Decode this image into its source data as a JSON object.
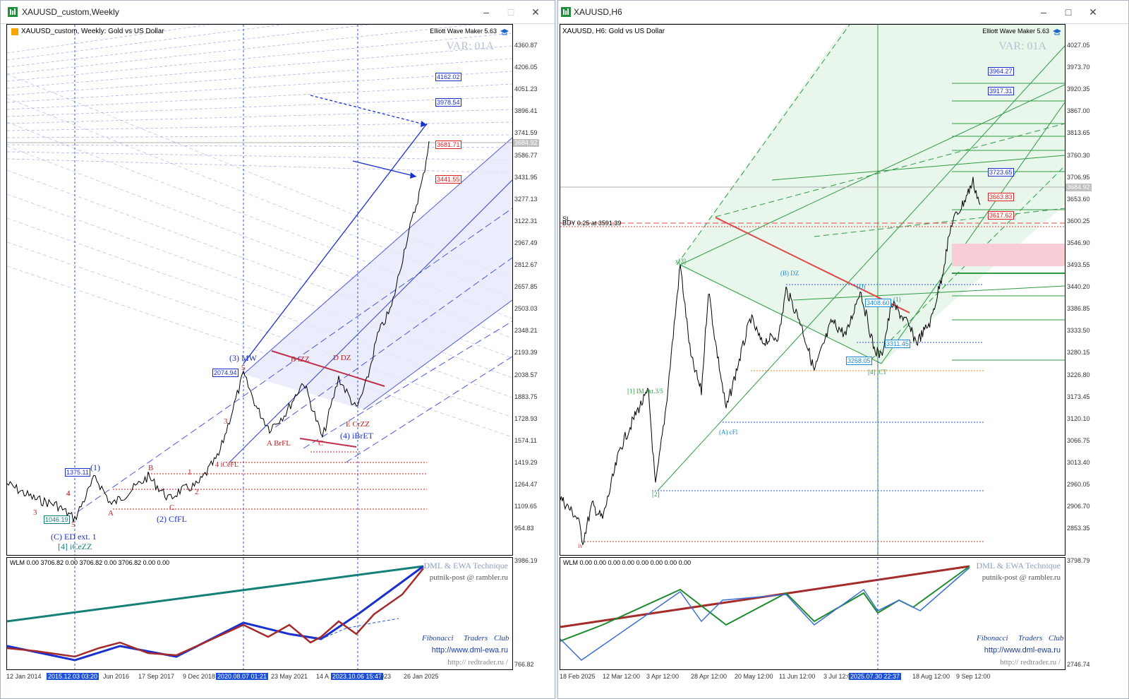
{
  "left": {
    "title": "XAUUSD_custom,Weekly",
    "header": "XAUUSD_custom, Weekly:  Gold vs US Dollar",
    "ea_label": "Elliott Wave Maker 5.63",
    "var_label": "VAR: 01A",
    "price_axis": [
      "4360.87",
      "4206.05",
      "4051.23",
      "3896.41",
      "3741.59",
      "3586.77",
      "3431.95",
      "3277.13",
      "3122.31",
      "2967.49",
      "2812.67",
      "2657.85",
      "2503.03",
      "2348.21",
      "2193.39",
      "2038.57",
      "1883.75",
      "1728.93",
      "1574.11",
      "1419.29",
      "1264.47",
      "1109.65",
      "954.83"
    ],
    "current_price": "3684.92",
    "price_tags": [
      {
        "text": "4162.02",
        "color": "#1a2fd0"
      },
      {
        "text": "3978.54",
        "color": "#1a2fd0"
      },
      {
        "text": "3681.71",
        "color": "#e02020"
      },
      {
        "text": "3441.55",
        "color": "#e02020"
      }
    ],
    "box_labels": [
      "2074.94",
      "1375.11",
      "1046.19"
    ],
    "wave_labels": [
      "(3) MW",
      "(1)",
      "(2) CfFL",
      "(C) ED ext. 1",
      "[4] iCeZZ",
      "A BrFL",
      "(4) iBrET",
      "E CrZZ",
      "D DZ",
      "B iZZ",
      "4 iCeFL",
      "A",
      "B",
      "C",
      "1",
      "2",
      "3",
      "4",
      "5",
      "3",
      "4",
      "5",
      "C"
    ],
    "time_axis": [
      "12 Jan 2014",
      "2015.12.03 03:20",
      "Jun 2016",
      "17 Sep 2017",
      "9 Dec 2018",
      "2020.08.07 01:21",
      "23 May 2021",
      "14 A",
      "2023.10.06 15:47",
      "023",
      "26 Jan 2025"
    ],
    "time_highlight": [
      "2015.12.03 03:20",
      "2020.08.07 01:21",
      "2023.10.06 15:47"
    ],
    "sub": {
      "wlm": "WLM 0.00 3706.82 0.00 3706.82 0.00 3706.82 0.00 0.00",
      "axis_top": "3986.19",
      "axis_bottom": "766.82",
      "credit1": "DML & EWA Technique",
      "credit2": "putnik-post @ rambler.ru",
      "fib_words": [
        "Fibonacci",
        "Traders",
        "Club"
      ],
      "url1": "http://www.dml-ewa.ru",
      "url2": "http:// redtrader.ru /"
    }
  },
  "right": {
    "title": "XAUUSD,H6",
    "header": "XAUUSD, H6:  Gold vs US Dollar",
    "ea_label": "Elliott Wave Maker 5.63",
    "var_label": "VAR: 01A",
    "buy_label": "BUY 0.25 at 3591.39",
    "sl_label": "SL",
    "price_axis": [
      "4027.05",
      "3973.70",
      "3920.35",
      "3867.00",
      "3813.65",
      "3760.30",
      "3706.95",
      "3653.60",
      "3600.25",
      "3546.90",
      "3493.55",
      "3440.20",
      "3386.85",
      "3333.50",
      "3280.15",
      "3226.80",
      "3173.45",
      "3120.10",
      "3066.75",
      "3013.40",
      "2960.05",
      "2906.70",
      "2853.35"
    ],
    "current_price": "3684.92",
    "price_tags": [
      {
        "text": "3964.27",
        "color": "#1a2fd0"
      },
      {
        "text": "3917.31",
        "color": "#1a2fd0"
      },
      {
        "text": "3723.65",
        "color": "#1a2fd0"
      },
      {
        "text": "3663.83",
        "color": "#e02020"
      },
      {
        "text": "3617.62",
        "color": "#e02020"
      }
    ],
    "box_labels": [
      "3408.60",
      "3311.45",
      "3268.05"
    ],
    "wave_labels": [
      "x[3]",
      "(B) DZ",
      "(D)",
      "(1)",
      "[1] IM ext.3/5",
      "(A) cFl",
      "[2]",
      "[4] iCT",
      "iv"
    ],
    "time_axis": [
      "18 Feb 2025",
      "12 Mar 12:00",
      "3 Apr 12:00",
      "28 Apr 12:00",
      "20 May 12:00",
      "11 Jun 12:00",
      "3 Jul 12:0",
      "2025.07.30 22:37",
      "18 Aug 12:00",
      "9 Sep 12:00"
    ],
    "time_highlight": [
      "2025.07.30 22:37"
    ],
    "sub": {
      "wlm": "WLM 0.00 0.00 0.00 0.00 0.00 0.00 0.00 0.00",
      "axis_top": "3798.79",
      "axis_bottom": "2746.74",
      "credit1": "DML & EWA Technique",
      "credit2": "putnik-post @ rambler.ru",
      "fib_words": [
        "Fibonacci",
        "Traders",
        "Club"
      ],
      "url1": "http://www.dml-ewa.ru",
      "url2": "http:// redtrader.ru /"
    }
  },
  "icons": {
    "app": "mt-chart-icon",
    "minimize": "minimize-icon",
    "maximize": "maximize-icon",
    "close": "close-icon",
    "cap": "graduation-cap-icon"
  },
  "colors": {
    "blue": "#1a2fd0",
    "red": "#e02020",
    "green": "#1c8a2c",
    "darkred": "#a52a2a",
    "teal": "#137f77"
  }
}
